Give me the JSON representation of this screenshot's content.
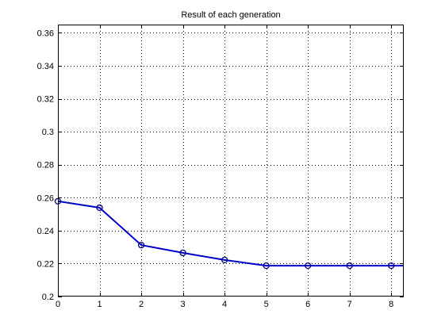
{
  "chart_data": {
    "type": "line",
    "title": "Result of each generation",
    "xlabel": "",
    "ylabel": "",
    "xlim": [
      0,
      8.3
    ],
    "ylim": [
      0.2,
      0.365
    ],
    "xticks": [
      0,
      1,
      2,
      3,
      4,
      5,
      6,
      7,
      8
    ],
    "yticks": [
      0.2,
      0.22,
      0.24,
      0.26,
      0.28,
      0.3,
      0.32,
      0.34,
      0.36
    ],
    "xtick_labels": [
      "0",
      "1",
      "2",
      "3",
      "4",
      "5",
      "6",
      "7",
      "8"
    ],
    "ytick_labels": [
      "0.2",
      "0.22",
      "0.24",
      "0.26",
      "0.28",
      "0.3",
      "0.32",
      "0.34",
      "0.36"
    ],
    "grid": true,
    "grid_style": "dotted",
    "colors": {
      "line": "#0000cc",
      "marker": "#000080",
      "axes": "#000000",
      "grid": "#000000"
    },
    "series": [
      {
        "marker": "circle",
        "x": [
          0,
          1,
          2,
          3,
          4,
          5,
          6,
          7,
          8
        ],
        "y": [
          0.2578,
          0.2539,
          0.2312,
          0.2265,
          0.2222,
          0.2187,
          0.2187,
          0.2187,
          0.2187
        ]
      }
    ],
    "line_extends_to": 8.3
  }
}
